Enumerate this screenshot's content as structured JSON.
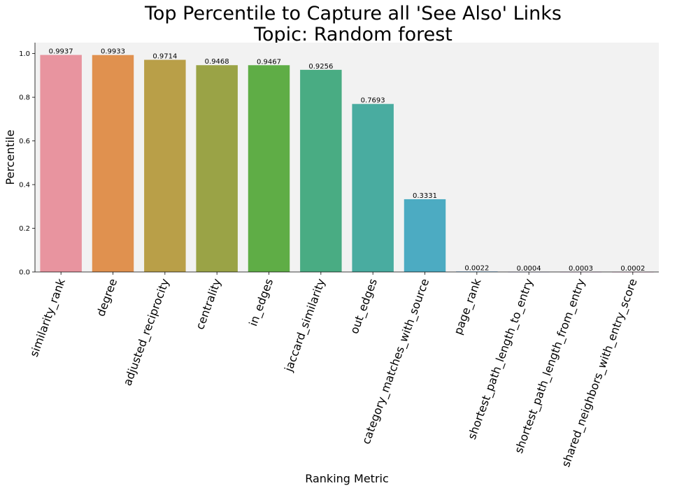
{
  "chart_data": {
    "type": "bar",
    "title": "Top Percentile to Capture all 'See Also' Links",
    "subtitle": "Topic: Random forest",
    "xlabel": "Ranking Metric",
    "ylabel": "Percentile",
    "ylim": [
      0,
      1.05
    ],
    "yticks": [
      "0.0",
      "0.2",
      "0.4",
      "0.6",
      "0.8",
      "1.0"
    ],
    "grid": false,
    "categories": [
      "similarity_rank",
      "degree",
      "adjusted_reciprocity",
      "centrality",
      "in_edges",
      "jaccard_similarity",
      "out_edges",
      "category_matches_with_source",
      "page_rank",
      "shortest_path_length_to_entry",
      "shortest_path_length_from_entry",
      "shared_neighbors_with_entry_score"
    ],
    "values": [
      0.9937,
      0.9933,
      0.9714,
      0.9468,
      0.9467,
      0.9256,
      0.7693,
      0.3331,
      0.0022,
      0.0004,
      0.0003,
      0.0002
    ],
    "value_labels": [
      "0.9937",
      "0.9933",
      "0.9714",
      "0.9468",
      "0.9467",
      "0.9256",
      "0.7693",
      "0.3331",
      "0.0022",
      "0.0004",
      "0.0003",
      "0.0002"
    ],
    "colors": [
      "#e8949f",
      "#e0914f",
      "#b99f48",
      "#9aa346",
      "#5fad46",
      "#49ac83",
      "#49aca0",
      "#4cabc2",
      "#5aa8e8",
      "#a6a3ef",
      "#e88ee9",
      "#ee8cc1"
    ],
    "plot_background": "#f2f2f2"
  }
}
